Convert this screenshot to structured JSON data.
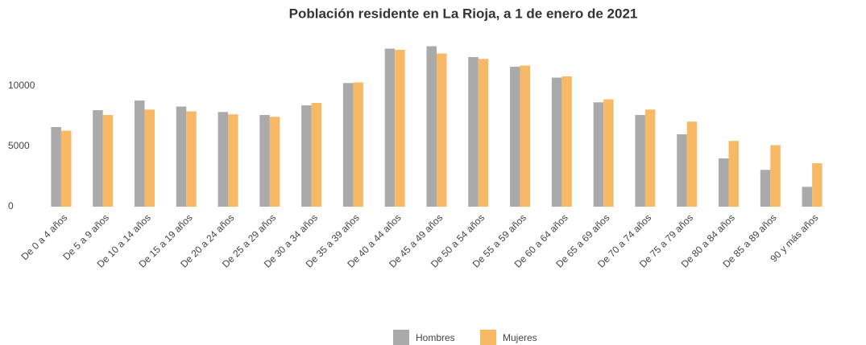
{
  "chart_data": {
    "type": "bar",
    "title": "Población residente en La Rioja, a 1 de enero de 2021",
    "categories": [
      "De 0 a 4 años",
      "De 5 a 9 años",
      "De 10 a 14 años",
      "De 15 a 19 años",
      "De 20 a 24 años",
      "De 25 a 29 años",
      "De 30 a 34 años",
      "De 35 a 39 años",
      "De 40 a 44 años",
      "De 45 a 49 años",
      "De 50 a 54 años",
      "De 55 a 59 años",
      "De 60 a 64 años",
      "De 65 a 69 años",
      "De 70 a 74 años",
      "De 75 a 79 años",
      "De 80 a 84 años",
      "De 85 a 89 años",
      "90 y más años"
    ],
    "series": [
      {
        "name": "Hombres",
        "color": "#aaaaaa",
        "values": [
          6600,
          8000,
          8800,
          8300,
          7850,
          7600,
          8400,
          10250,
          13100,
          13300,
          12400,
          11600,
          10700,
          8650,
          7600,
          6000,
          4000,
          3050,
          1650
        ]
      },
      {
        "name": "Mujeres",
        "color": "#f8b967",
        "values": [
          6300,
          7600,
          8050,
          7900,
          7650,
          7450,
          8600,
          10300,
          13000,
          12700,
          12250,
          11700,
          10800,
          8900,
          8050,
          7050,
          5450,
          5100,
          3600
        ]
      }
    ],
    "ylim": [
      0,
      13500
    ],
    "yticks": [
      0,
      5000,
      10000
    ],
    "grid": false,
    "legend": "bottom"
  }
}
